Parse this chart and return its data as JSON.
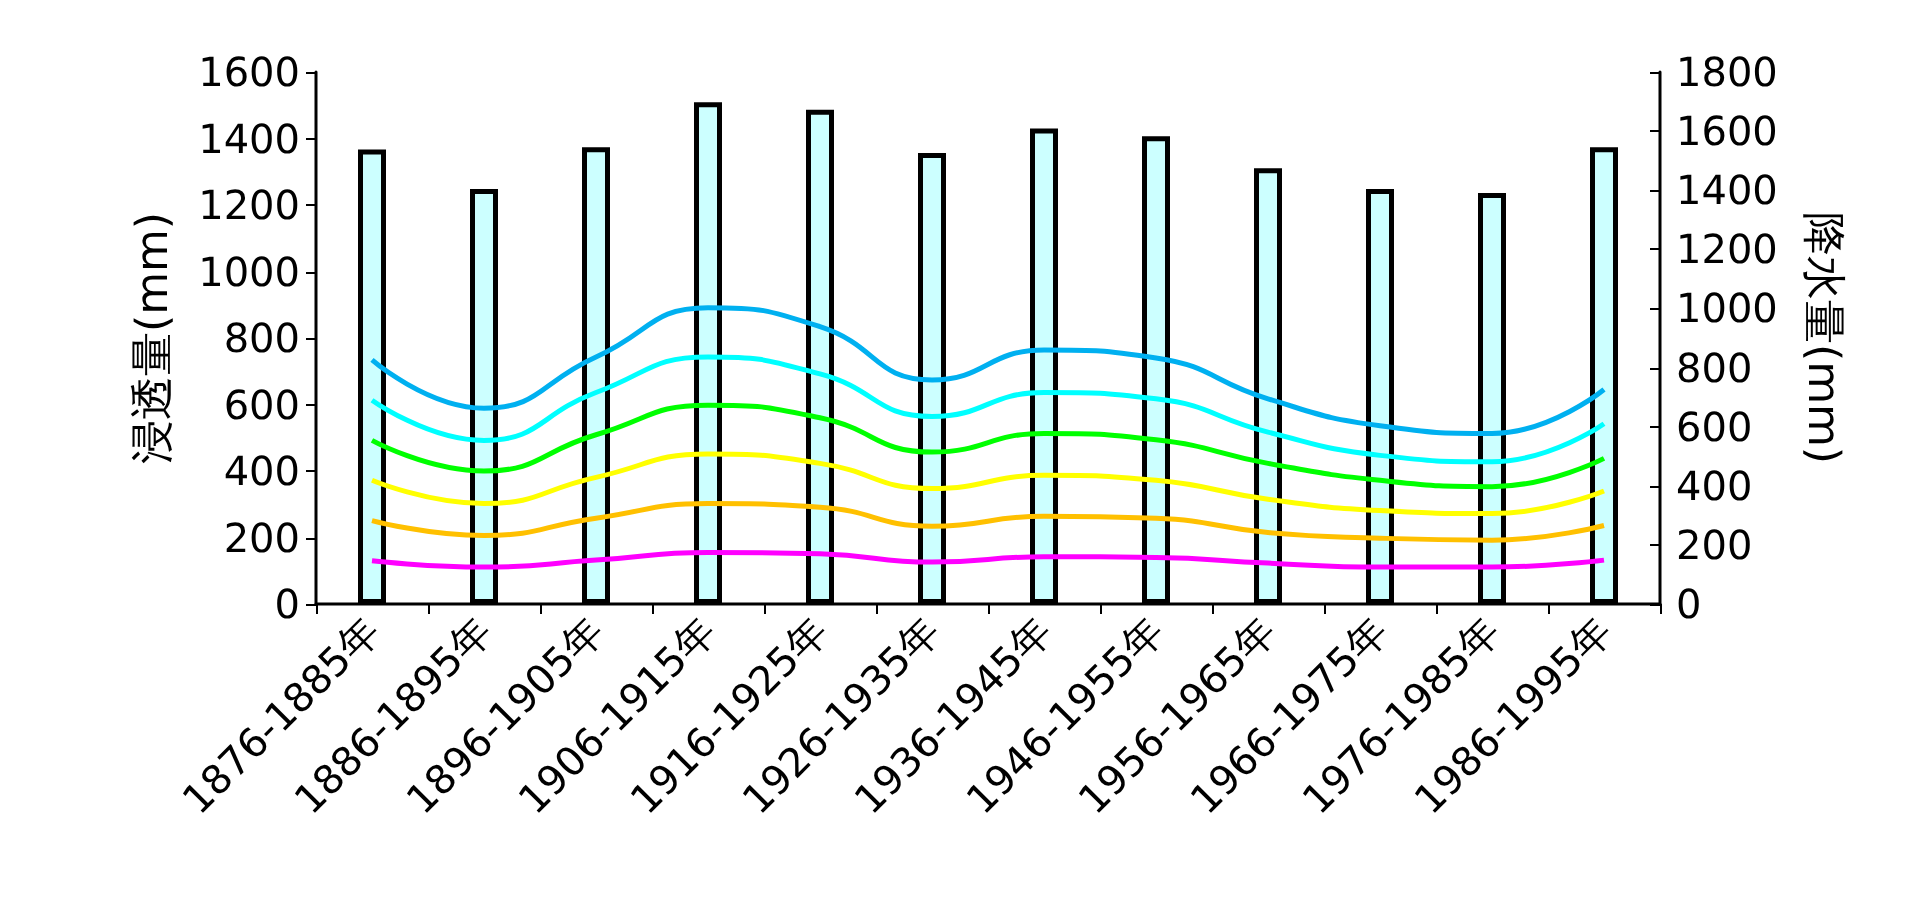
{
  "chart_data": {
    "type": "line",
    "ylabel": "浸透量(mm)",
    "y2label": "降水量(mm)",
    "categories": [
      "1876-1885年",
      "1886-1895年",
      "1896-1905年",
      "1906-1915年",
      "1916-1925年",
      "1926-1935年",
      "1936-1945年",
      "1946-1955年",
      "1956-1965年",
      "1966-1975年",
      "1976-1985年",
      "1986-1995年"
    ],
    "series": [
      {
        "type": "bar",
        "axis": "y2",
        "color": "#ccffff",
        "values": [
          1538,
          1404,
          1545,
          1698,
          1672,
          1526,
          1609,
          1583,
          1474,
          1404,
          1391,
          1545
        ]
      },
      {
        "color": "#00b0f0",
        "values": [
          734,
          589,
          743,
          891,
          834,
          674,
          764,
          740,
          617,
          536,
          513,
          645
        ]
      },
      {
        "color": "#00ffff",
        "values": [
          613,
          492,
          636,
          743,
          692,
          564,
          636,
          617,
          517,
          447,
          428,
          542
        ]
      },
      {
        "color": "#00ff00",
        "values": [
          492,
          400,
          509,
          598,
          560,
          457,
          513,
          494,
          423,
          372,
          353,
          438
        ]
      },
      {
        "color": "#ffff00",
        "values": [
          372,
          302,
          381,
          451,
          423,
          347,
          387,
          372,
          315,
          281,
          272,
          340
        ]
      },
      {
        "color": "#ffc000",
        "values": [
          251,
          206,
          258,
          302,
          291,
          234,
          264,
          258,
          215,
          198,
          192,
          236
        ]
      },
      {
        "color": "#ff00ff",
        "values": [
          130,
          111,
          132,
          155,
          151,
          126,
          142,
          140,
          123,
          111,
          111,
          132
        ]
      }
    ],
    "ylim": [
      0,
      1600
    ],
    "yticks": [
      0,
      200,
      400,
      600,
      800,
      1000,
      1200,
      1400,
      1600
    ],
    "y2lim": [
      0,
      1800
    ],
    "y2ticks": [
      0,
      200,
      400,
      600,
      800,
      1000,
      1200,
      1400,
      1600,
      1800
    ],
    "grid": false,
    "marker": "none",
    "line_style": "solid"
  }
}
